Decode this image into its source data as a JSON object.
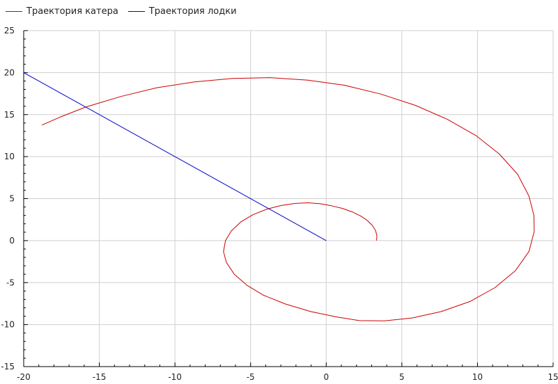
{
  "chart_data": {
    "type": "line",
    "title": "",
    "xlabel": "",
    "ylabel": "",
    "xlim": [
      -20,
      15
    ],
    "ylim": [
      -15,
      25
    ],
    "xticks": [
      -20,
      -15,
      -10,
      -5,
      0,
      5,
      10,
      15
    ],
    "yticks": [
      -15,
      -10,
      -5,
      0,
      5,
      10,
      15,
      20,
      25
    ],
    "grid": true,
    "legend_position": "top-left",
    "series": [
      {
        "name": "Траектория катера",
        "color": "#cc0000",
        "points": [
          [
            3.33,
            0.0
          ],
          [
            3.35,
            0.6
          ],
          [
            3.26,
            1.2
          ],
          [
            3.05,
            1.8
          ],
          [
            2.72,
            2.4
          ],
          [
            2.27,
            2.94
          ],
          [
            1.72,
            3.42
          ],
          [
            1.08,
            3.83
          ],
          [
            0.35,
            4.15
          ],
          [
            -0.43,
            4.4
          ],
          [
            -1.22,
            4.5
          ],
          [
            -2.1,
            4.42
          ],
          [
            -3.0,
            4.17
          ],
          [
            -3.92,
            3.75
          ],
          [
            -4.85,
            3.08
          ],
          [
            -5.65,
            2.22
          ],
          [
            -6.27,
            1.16
          ],
          [
            -6.66,
            0.0
          ],
          [
            -6.79,
            -1.3
          ],
          [
            -6.6,
            -2.6
          ],
          [
            -6.08,
            -4.0
          ],
          [
            -5.25,
            -5.3
          ],
          [
            -4.15,
            -6.5
          ],
          [
            -2.7,
            -7.55
          ],
          [
            -1.02,
            -8.45
          ],
          [
            0.72,
            -9.1
          ],
          [
            2.2,
            -9.53
          ],
          [
            3.85,
            -9.55
          ],
          [
            5.7,
            -9.2
          ],
          [
            7.6,
            -8.45
          ],
          [
            9.5,
            -7.25
          ],
          [
            11.15,
            -5.6
          ],
          [
            12.5,
            -3.6
          ],
          [
            13.4,
            -1.3
          ],
          [
            13.75,
            1.1
          ],
          [
            13.73,
            3.0
          ],
          [
            13.4,
            5.3
          ],
          [
            12.65,
            7.9
          ],
          [
            11.45,
            10.3
          ],
          [
            9.9,
            12.5
          ],
          [
            8.0,
            14.45
          ],
          [
            5.9,
            16.1
          ],
          [
            3.6,
            17.45
          ],
          [
            1.2,
            18.5
          ],
          [
            -1.2,
            19.1
          ],
          [
            -3.7,
            19.4
          ],
          [
            -6.2,
            19.3
          ],
          [
            -8.7,
            18.9
          ],
          [
            -11.2,
            18.2
          ],
          [
            -13.6,
            17.15
          ],
          [
            -15.9,
            15.9
          ],
          [
            -17.6,
            14.7
          ],
          [
            -18.8,
            13.75
          ]
        ]
      },
      {
        "name": "Траектория лодки",
        "color": "#0000cc",
        "points": [
          [
            0.0,
            0.0
          ],
          [
            -20.0,
            20.0
          ]
        ]
      }
    ]
  }
}
